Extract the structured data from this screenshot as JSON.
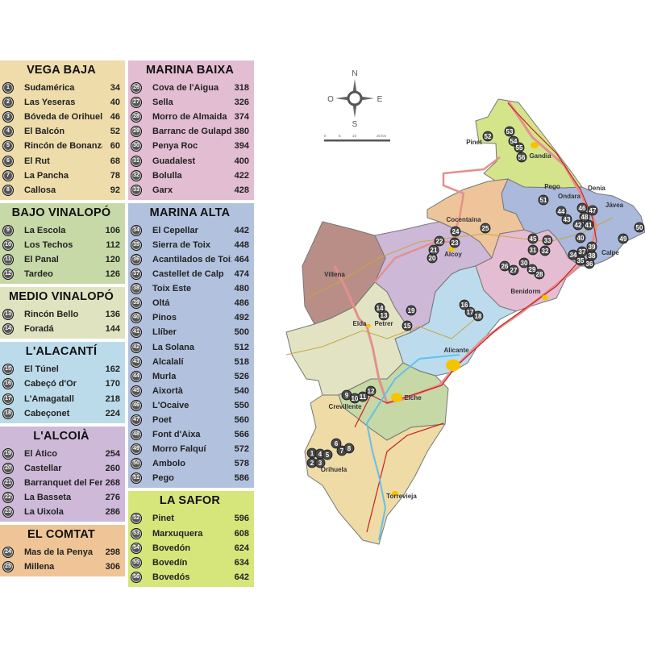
{
  "sections_left": [
    {
      "title": "VEGA BAJA",
      "color": "#eedcaa",
      "rows": [
        {
          "n": "1",
          "name": "Sudamérica",
          "value": "34"
        },
        {
          "n": "2",
          "name": "Las Yeseras",
          "value": "40"
        },
        {
          "n": "3",
          "name": "Bóveda de Orihuela",
          "value": "46"
        },
        {
          "n": "4",
          "name": "El Balcón",
          "value": "52"
        },
        {
          "n": "5",
          "name": "Rincón de Bonanza",
          "value": "60"
        },
        {
          "n": "6",
          "name": "El Rut",
          "value": "68"
        },
        {
          "n": "7",
          "name": "La Pancha",
          "value": "78"
        },
        {
          "n": "8",
          "name": "Callosa",
          "value": "92"
        }
      ]
    },
    {
      "title": "BAJO VINALOPÓ",
      "color": "#c8d9a8",
      "rows": [
        {
          "n": "9",
          "name": "La Escola",
          "value": "106"
        },
        {
          "n": "10",
          "name": "Los Techos",
          "value": "112"
        },
        {
          "n": "11",
          "name": "El Panal",
          "value": "120"
        },
        {
          "n": "12",
          "name": "Tardeo",
          "value": "126"
        }
      ]
    },
    {
      "title": "MEDIO VINALOPÓ",
      "color": "#e0e3bf",
      "rows": [
        {
          "n": "13",
          "name": "Rincón Bello",
          "value": "136"
        },
        {
          "n": "14",
          "name": "Foradá",
          "value": "144"
        }
      ]
    },
    {
      "title": "L'ALACANTÍ",
      "color": "#bcdbea",
      "rows": [
        {
          "n": "15",
          "name": "El Túnel",
          "value": "162"
        },
        {
          "n": "16",
          "name": "Cabeçó d'Or",
          "value": "170"
        },
        {
          "n": "17",
          "name": "L'Amagatall",
          "value": "218"
        },
        {
          "n": "18",
          "name": "Cabeçonet",
          "value": "224"
        }
      ]
    },
    {
      "title": "L'ALCOIÀ",
      "color": "#ceb9d9",
      "rows": [
        {
          "n": "19",
          "name": "El Ático",
          "value": "254"
        },
        {
          "n": "20",
          "name": "Castellar",
          "value": "260"
        },
        {
          "n": "21",
          "name": "Barranquet del Ferri",
          "value": "268"
        },
        {
          "n": "22",
          "name": "La Basseta",
          "value": "276"
        },
        {
          "n": "23",
          "name": "La Uixola",
          "value": "286"
        }
      ]
    },
    {
      "title": "EL COMTAT",
      "color": "#efc597",
      "rows": [
        {
          "n": "24",
          "name": "Mas de la Penya",
          "value": "298"
        },
        {
          "n": "25",
          "name": "Millena",
          "value": "306"
        }
      ]
    }
  ],
  "sections_right": [
    {
      "title": "MARINA BAIXA",
      "color": "#e3bdd1",
      "rows": [
        {
          "n": "26",
          "name": "Cova de l'Aigua",
          "value": "318"
        },
        {
          "n": "27",
          "name": "Sella",
          "value": "326"
        },
        {
          "n": "28",
          "name": "Morro de Almaida",
          "value": "374"
        },
        {
          "n": "29",
          "name": "Barranc de Gulapdar",
          "value": "380"
        },
        {
          "n": "30",
          "name": "Penya Roc",
          "value": "394"
        },
        {
          "n": "31",
          "name": "Guadalest",
          "value": "400"
        },
        {
          "n": "32",
          "name": "Bolulla",
          "value": "422"
        },
        {
          "n": "33",
          "name": "Garx",
          "value": "428"
        }
      ]
    },
    {
      "title": "MARINA ALTA",
      "color": "#b2c2de",
      "rows": [
        {
          "n": "34",
          "name": "El Cepellar",
          "value": "442"
        },
        {
          "n": "35",
          "name": "Sierra de Toix",
          "value": "448"
        },
        {
          "n": "36",
          "name": "Acantilados de Toix",
          "value": "464"
        },
        {
          "n": "37",
          "name": "Castellet de Calp",
          "value": "474"
        },
        {
          "n": "38",
          "name": "Toix Este",
          "value": "480"
        },
        {
          "n": "39",
          "name": "Oltá",
          "value": "486"
        },
        {
          "n": "40",
          "name": "Pinos",
          "value": "492"
        },
        {
          "n": "41",
          "name": "Llíber",
          "value": "500"
        },
        {
          "n": "42",
          "name": "La Solana",
          "value": "512"
        },
        {
          "n": "43",
          "name": "Alcalalí",
          "value": "518"
        },
        {
          "n": "44",
          "name": "Murla",
          "value": "526"
        },
        {
          "n": "45",
          "name": "Aixortà",
          "value": "540"
        },
        {
          "n": "46",
          "name": "L'Ocaive",
          "value": "550"
        },
        {
          "n": "47",
          "name": "Poet",
          "value": "560"
        },
        {
          "n": "48",
          "name": "Font d'Aixa",
          "value": "566"
        },
        {
          "n": "49",
          "name": "Morro Falquí",
          "value": "572"
        },
        {
          "n": "50",
          "name": "Ambolo",
          "value": "578"
        },
        {
          "n": "51",
          "name": "Pego",
          "value": "586"
        }
      ]
    },
    {
      "title": "LA SAFOR",
      "color": "#d6e67b",
      "rows": [
        {
          "n": "52",
          "name": "Pinet",
          "value": "596"
        },
        {
          "n": "53",
          "name": "Marxuquera",
          "value": "608"
        },
        {
          "n": "54",
          "name": "Bovedón",
          "value": "624"
        },
        {
          "n": "55",
          "name": "Bovedín",
          "value": "634"
        },
        {
          "n": "56",
          "name": "Bovedós",
          "value": "642"
        }
      ]
    }
  ],
  "map": {
    "compass": {
      "north": "N",
      "south": "S",
      "east": "E",
      "west": "O"
    },
    "scale": {
      "ticks": [
        "0",
        "5",
        "10",
        "20 km"
      ]
    },
    "towns": [
      "Pinet",
      "Gandia",
      "Pego",
      "Denia",
      "Ondara",
      "Jávea",
      "Calpe",
      "Cocentaina",
      "Alcoy",
      "Villena",
      "Benidorm",
      "Elda",
      "Petrer",
      "Alicante",
      "Elche",
      "Crevillente",
      "Orihuela",
      "Torrevieja"
    ],
    "region_colors": {
      "la_safor": "#d3e48a",
      "marina_alta": "#aab9dc",
      "el_comtat": "#eec59a",
      "alcoia": "#cdb8d8",
      "marina_baixa": "#e5bdd2",
      "alacanti": "#bcdcee",
      "alto_vinalopo": "#b98e86",
      "medio_vinalopo": "#e2e3c3",
      "bajo_vinalopo": "#c6d8a5",
      "vega_baja": "#eedba6"
    },
    "markers": [
      "1",
      "2",
      "3",
      "4",
      "5",
      "6",
      "7",
      "8",
      "9",
      "10",
      "11",
      "12",
      "13",
      "14",
      "15",
      "16",
      "17",
      "18",
      "19",
      "20",
      "21",
      "22",
      "23",
      "24",
      "25",
      "26",
      "27",
      "28",
      "29",
      "30",
      "31",
      "32",
      "33",
      "34",
      "35",
      "36",
      "37",
      "38",
      "39",
      "40",
      "41",
      "42",
      "43",
      "44",
      "45",
      "46",
      "47",
      "48",
      "49",
      "50",
      "51",
      "52",
      "53",
      "54",
      "55",
      "56"
    ]
  }
}
